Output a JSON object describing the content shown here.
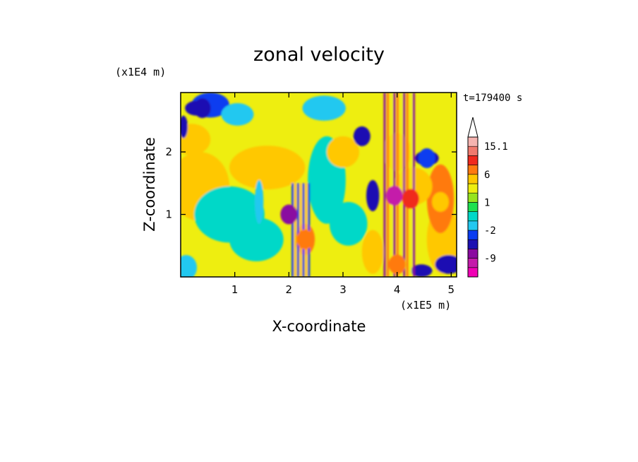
{
  "chart_data": {
    "type": "heatmap",
    "title": "zonal velocity",
    "xlabel": "X-coordinate",
    "ylabel": "Z-coordinate",
    "x_scale_label": "(x1E5 m)",
    "y_scale_label": "(x1E4 m)",
    "time_label": "t=179400 s",
    "xlim": [
      0.0,
      5.1
    ],
    "ylim": [
      0.0,
      2.95
    ],
    "x_ticks": [
      1,
      2,
      3,
      4,
      5
    ],
    "y_ticks": [
      1,
      2
    ],
    "colorbar": {
      "levels": [
        -15.1,
        -12,
        -9,
        -6,
        -4,
        -2,
        -1,
        0,
        1,
        2,
        4,
        6,
        9,
        12,
        15.1
      ],
      "colors": [
        "#f000b4",
        "#c41aaa",
        "#8a0aa0",
        "#1c10b2",
        "#0a3cf0",
        "#22c8f0",
        "#00d8c8",
        "#1ee050",
        "#96e41e",
        "#eeee10",
        "#ffc800",
        "#ff7a10",
        "#f02a1e",
        "#f07a6e",
        "#f5b4b0"
      ],
      "tick_labels": [
        "15.1",
        "6",
        "1",
        "-2",
        "-9"
      ],
      "tick_values": [
        15.1,
        6,
        1,
        -2,
        -9
      ],
      "extend": "max"
    },
    "features": [
      {
        "x": 2.0,
        "z": 1.0,
        "value": -7,
        "note": "vertical wave column"
      },
      {
        "x": 2.3,
        "z": 0.6,
        "value": 6
      },
      {
        "x": 3.95,
        "z": 1.3,
        "value": -12
      },
      {
        "x": 4.25,
        "z": 1.25,
        "value": 9
      },
      {
        "x": 4.0,
        "z": 0.2,
        "value": 8
      },
      {
        "x": 4.8,
        "z": 1.2,
        "value": 5
      },
      {
        "x": 0.4,
        "z": 2.7,
        "value": -5
      },
      {
        "x": 3.35,
        "z": 2.25,
        "value": -5
      },
      {
        "x": 4.55,
        "z": 1.9,
        "value": -4
      },
      {
        "x": 0.3,
        "z": 1.5,
        "value": 5
      },
      {
        "x": 0.9,
        "z": 1.1,
        "value": -1
      }
    ]
  }
}
